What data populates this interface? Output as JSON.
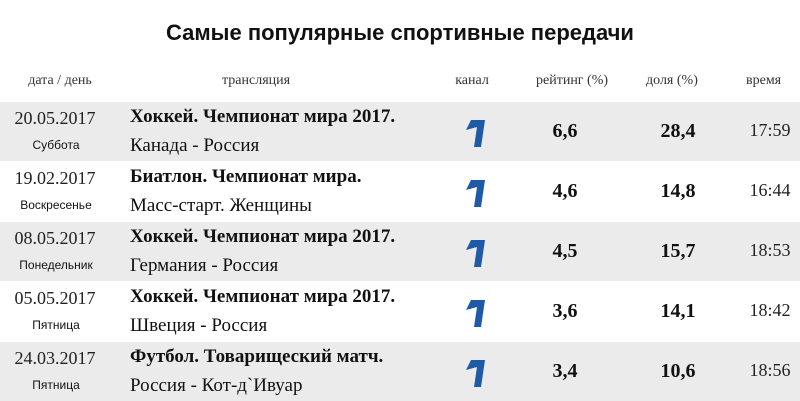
{
  "title": "Самые популярные спортивные передачи",
  "headers": {
    "date": "дата / день",
    "program": "трансляция",
    "channel": "канал",
    "rating": "рейтинг (%)",
    "share": "доля (%)",
    "time": "время"
  },
  "channel_icon": "pervyi-kanal-logo-icon",
  "logo_color": "#1f5aa8",
  "rows": [
    {
      "date": "20.05.2017",
      "day": "Суббота",
      "program": "Хоккей. Чемпионат мира 2017.",
      "subtitle": "Канада - Россия",
      "rating": "6,6",
      "share": "28,4",
      "time": "17:59"
    },
    {
      "date": "19.02.2017",
      "day": "Воскресенье",
      "program": "Биатлон. Чемпионат мира.",
      "subtitle": "Масс-старт. Женщины",
      "rating": "4,6",
      "share": "14,8",
      "time": "16:44"
    },
    {
      "date": "08.05.2017",
      "day": "Понедельник",
      "program": "Хоккей. Чемпионат мира 2017.",
      "subtitle": "Германия - Россия",
      "rating": "4,5",
      "share": "15,7",
      "time": "18:53"
    },
    {
      "date": "05.05.2017",
      "day": "Пятница",
      "program": "Хоккей. Чемпионат мира 2017.",
      "subtitle": "Швеция - Россия",
      "rating": "3,6",
      "share": "14,1",
      "time": "18:42"
    },
    {
      "date": "24.03.2017",
      "day": "Пятница",
      "program": "Футбол. Товарищеский матч.",
      "subtitle": "Россия - Кот-д`Ивуар",
      "rating": "3,4",
      "share": "10,6",
      "time": "18:56"
    }
  ]
}
